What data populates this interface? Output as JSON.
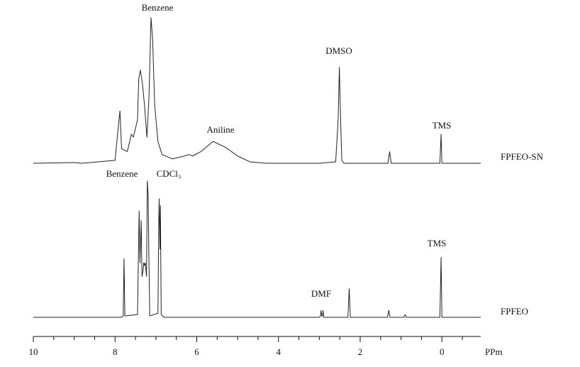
{
  "chart_data": {
    "type": "line",
    "xlabel": "PPm",
    "xlim": [
      10,
      -0.95
    ],
    "xticks": [
      10,
      8,
      6,
      4,
      2,
      0
    ],
    "xminorticks": [
      9.5,
      9,
      8.5,
      7.5,
      7,
      6.5,
      5.5,
      5,
      4.5,
      3.5,
      3,
      2.5,
      1.5,
      1,
      0.5,
      -0.5
    ],
    "ylim": [
      0,
      100
    ],
    "series": [
      {
        "name": "FPFEO-SN",
        "color": "#222222",
        "annotations": [
          "Benzene",
          "DMSO",
          "Aniline",
          "TMS"
        ],
        "x": [
          10,
          9.0,
          8.8,
          8.0,
          7.92,
          7.88,
          7.84,
          7.7,
          7.6,
          7.55,
          7.45,
          7.42,
          7.38,
          7.33,
          7.28,
          7.22,
          7.17,
          7.12,
          7.08,
          7.03,
          6.95,
          6.85,
          6.6,
          6.3,
          6.2,
          6.1,
          5.9,
          5.6,
          5.3,
          5.0,
          4.7,
          4.3,
          3.0,
          2.6,
          2.54,
          2.51,
          2.48,
          2.45,
          2.4,
          1.32,
          1.28,
          1.24,
          0.9,
          0.05,
          0.02,
          0.0,
          -0.95
        ],
        "values": [
          0,
          0.5,
          0,
          2,
          25,
          36,
          10,
          8,
          20,
          18,
          30,
          58,
          64,
          55,
          40,
          18,
          45,
          100,
          85,
          40,
          15,
          6,
          3,
          5,
          6,
          5,
          8,
          15,
          11,
          5,
          1,
          0,
          0,
          1,
          30,
          66,
          30,
          2,
          0,
          0,
          8,
          0,
          0,
          0,
          20,
          0,
          0
        ]
      },
      {
        "name": "FPFEO",
        "color": "#222222",
        "annotations": [
          "Benzene",
          "CDCl₃",
          "DMF",
          "TMS"
        ],
        "x": [
          10,
          7.85,
          7.8,
          7.78,
          7.76,
          7.45,
          7.42,
          7.41,
          7.39,
          7.37,
          7.36,
          7.34,
          7.31,
          7.3,
          7.28,
          7.26,
          7.23,
          7.21,
          7.19,
          7.17,
          7.15,
          6.95,
          6.93,
          6.92,
          6.9,
          6.89,
          6.87,
          6.8,
          3.0,
          2.97,
          2.96,
          2.94,
          2.92,
          2.91,
          2.89,
          2.3,
          2.27,
          2.24,
          1.33,
          1.3,
          1.27,
          0.93,
          0.9,
          0.87,
          0.05,
          0.02,
          0.0,
          -0.95
        ],
        "values": [
          0,
          0,
          1,
          43,
          1,
          2,
          60,
          78,
          40,
          60,
          71,
          30,
          35,
          40,
          38,
          40,
          30,
          100,
          90,
          40,
          1,
          3,
          70,
          87,
          50,
          82,
          2,
          0,
          0,
          1,
          5,
          1,
          1,
          5,
          0,
          0,
          21,
          0,
          0,
          5,
          0,
          0,
          2,
          0,
          0,
          44,
          0,
          0
        ]
      }
    ]
  }
}
